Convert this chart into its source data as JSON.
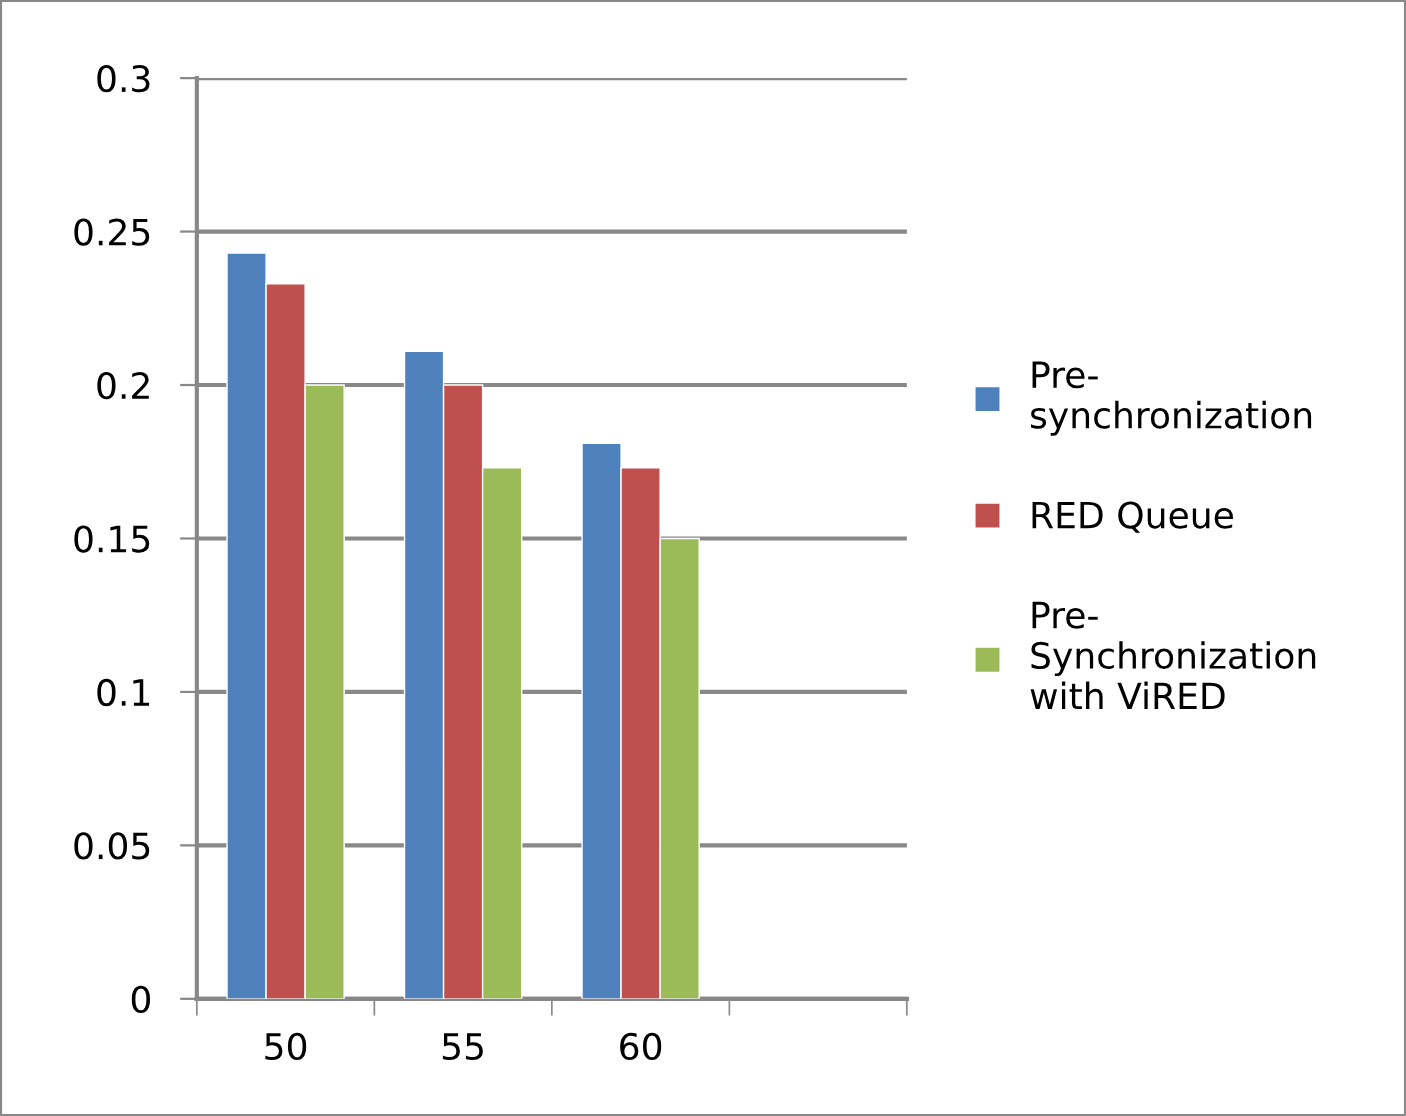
{
  "chart_data": {
    "type": "bar",
    "categories": [
      "50",
      "55",
      "60",
      null
    ],
    "series": [
      {
        "name": "Pre-synchronization",
        "color": "#4f81bd",
        "values": [
          0.243,
          0.211,
          0.181,
          null
        ]
      },
      {
        "name": "RED Queue",
        "color": "#c0504d",
        "values": [
          0.233,
          0.2,
          0.173,
          null
        ]
      },
      {
        "name": "Pre-Synchronization with ViRED",
        "color": "#9bbb59",
        "values": [
          0.2,
          0.173,
          0.15,
          null
        ]
      }
    ],
    "ylim": [
      0,
      0.3
    ],
    "yticks": [
      {
        "value": 0,
        "label": "0"
      },
      0.05,
      0.1,
      0.15,
      0.2,
      0.25,
      0.3
    ],
    "grid": "y",
    "legend": "right"
  }
}
